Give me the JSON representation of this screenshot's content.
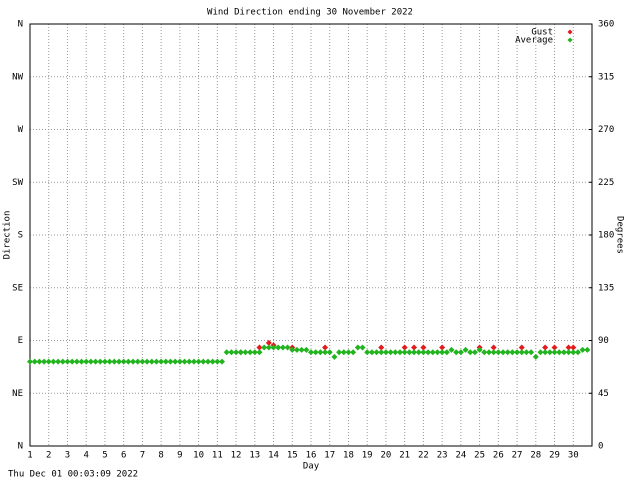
{
  "chart_data": {
    "type": "scatter",
    "title": "Wind Direction ending 30 November 2022",
    "xlabel": "Day",
    "ylabel": "Direction",
    "y2label": "Degrees",
    "footer": "Thu Dec 01 00:03:09 2022",
    "xlim": [
      1,
      31
    ],
    "xticks": [
      1,
      2,
      3,
      4,
      5,
      6,
      7,
      8,
      9,
      10,
      11,
      12,
      13,
      14,
      15,
      16,
      17,
      18,
      19,
      20,
      21,
      22,
      23,
      24,
      25,
      26,
      27,
      28,
      29,
      30
    ],
    "ylim": [
      0,
      360
    ],
    "yticks": [
      {
        "value": 0,
        "label": "N"
      },
      {
        "value": 45,
        "label": "NE"
      },
      {
        "value": 90,
        "label": "E"
      },
      {
        "value": 135,
        "label": "SE"
      },
      {
        "value": 180,
        "label": "S"
      },
      {
        "value": 225,
        "label": "SW"
      },
      {
        "value": 270,
        "label": "W"
      },
      {
        "value": 315,
        "label": "NW"
      },
      {
        "value": 360,
        "label": "N"
      }
    ],
    "y2lim": [
      0,
      360
    ],
    "y2ticks": [
      0,
      45,
      90,
      135,
      180,
      225,
      270,
      315,
      360
    ],
    "grid": true,
    "legend": "upper right",
    "series": [
      {
        "name": "Gust",
        "color": "#e41a1c",
        "x": [
          12.25,
          13.25,
          13.75,
          14,
          15,
          16.75,
          19.75,
          21,
          21.5,
          22,
          23,
          25,
          25.75,
          27.25,
          28.5,
          29,
          29.75,
          30
        ],
        "values": [
          80,
          84,
          88,
          86,
          84,
          84,
          84,
          84,
          84,
          84,
          84,
          84,
          84,
          84,
          84,
          84,
          84,
          84
        ]
      },
      {
        "name": "Average",
        "color": "#22b41e",
        "x": [
          1,
          1.25,
          1.5,
          1.75,
          2,
          2.25,
          2.5,
          2.75,
          3,
          3.25,
          3.5,
          3.75,
          4,
          4.25,
          4.5,
          4.75,
          5,
          5.25,
          5.5,
          5.75,
          6,
          6.25,
          6.5,
          6.75,
          7,
          7.25,
          7.5,
          7.75,
          8,
          8.25,
          8.5,
          8.75,
          9,
          9.25,
          9.5,
          9.75,
          10,
          10.25,
          10.5,
          10.75,
          11,
          11.25,
          11.5,
          11.75,
          12,
          12.25,
          12.5,
          12.75,
          13,
          13.25,
          13.5,
          13.75,
          14,
          14.25,
          14.5,
          14.75,
          15,
          15.25,
          15.5,
          15.75,
          16,
          16.25,
          16.5,
          16.75,
          17,
          17.25,
          17.5,
          17.75,
          18,
          18.25,
          18.5,
          18.75,
          19,
          19.25,
          19.5,
          19.75,
          20,
          20.25,
          20.5,
          20.75,
          21,
          21.25,
          21.5,
          21.75,
          22,
          22.25,
          22.5,
          22.75,
          23,
          23.25,
          23.5,
          23.75,
          24,
          24.25,
          24.5,
          24.75,
          25,
          25.25,
          25.5,
          25.75,
          26,
          26.25,
          26.5,
          26.75,
          27,
          27.25,
          27.5,
          27.75,
          28,
          28.25,
          28.5,
          28.75,
          29,
          29.25,
          29.5,
          29.75,
          30,
          30.25,
          30.5,
          30.75
        ],
        "values": [
          72,
          72,
          72,
          72,
          72,
          72,
          72,
          72,
          72,
          72,
          72,
          72,
          72,
          72,
          72,
          72,
          72,
          72,
          72,
          72,
          72,
          72,
          72,
          72,
          72,
          72,
          72,
          72,
          72,
          72,
          72,
          72,
          72,
          72,
          72,
          72,
          72,
          72,
          72,
          72,
          72,
          72,
          80,
          80,
          80,
          80,
          80,
          80,
          80,
          80,
          84,
          84,
          84,
          84,
          84,
          84,
          82,
          82,
          82,
          82,
          80,
          80,
          80,
          80,
          80,
          76,
          80,
          80,
          80,
          80,
          84,
          84,
          80,
          80,
          80,
          80,
          80,
          80,
          80,
          80,
          80,
          80,
          80,
          80,
          80,
          80,
          80,
          80,
          80,
          80,
          82,
          80,
          80,
          82,
          80,
          80,
          82,
          80,
          80,
          80,
          80,
          80,
          80,
          80,
          80,
          80,
          80,
          80,
          76,
          80,
          80,
          80,
          80,
          80,
          80,
          80,
          80,
          80,
          82,
          82
        ]
      }
    ]
  }
}
